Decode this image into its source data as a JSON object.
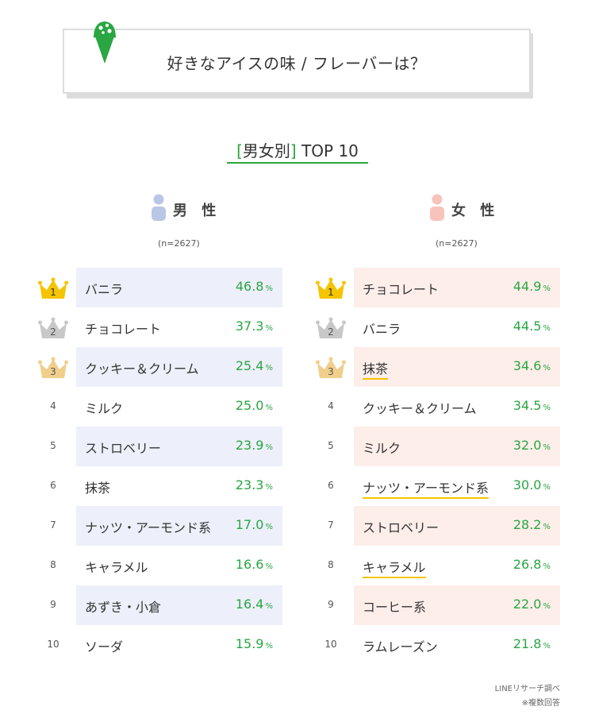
{
  "title": "好きなアイスの味 / フレーバーは？",
  "subtitle": {
    "bracket_open": "[",
    "group": "男女別",
    "bracket_close": "]",
    "top": "TOP 10"
  },
  "male": {
    "label": "男 性",
    "sample": "(n=2627)",
    "color": "#b9c6e6",
    "row_bg": "#edf0fa",
    "items": [
      {
        "rank": "1",
        "name": "バニラ",
        "value": "46.8",
        "unit": "%"
      },
      {
        "rank": "2",
        "name": "チョコレート",
        "value": "37.3",
        "unit": "%"
      },
      {
        "rank": "3",
        "name": "クッキー＆クリーム",
        "value": "25.4",
        "unit": "%"
      },
      {
        "rank": "4",
        "name": "ミルク",
        "value": "25.0",
        "unit": "%"
      },
      {
        "rank": "5",
        "name": "ストロベリー",
        "value": "23.9",
        "unit": "%"
      },
      {
        "rank": "6",
        "name": "抹茶",
        "value": "23.3",
        "unit": "%"
      },
      {
        "rank": "7",
        "name": "ナッツ・アーモンド系",
        "value": "17.0",
        "unit": "%"
      },
      {
        "rank": "8",
        "name": "キャラメル",
        "value": "16.6",
        "unit": "%"
      },
      {
        "rank": "9",
        "name": "あずき・小倉",
        "value": "16.4",
        "unit": "%"
      },
      {
        "rank": "10",
        "name": "ソーダ",
        "value": "15.9",
        "unit": "%"
      }
    ]
  },
  "female": {
    "label": "女 性",
    "sample": "(n=2627)",
    "color": "#f7c3bb",
    "row_bg": "#fdeeea",
    "items": [
      {
        "rank": "1",
        "name": "チョコレート",
        "value": "44.9",
        "unit": "%"
      },
      {
        "rank": "2",
        "name": "バニラ",
        "value": "44.5",
        "unit": "%"
      },
      {
        "rank": "3",
        "name": "抹茶",
        "value": "34.6",
        "unit": "%",
        "underline": true
      },
      {
        "rank": "4",
        "name": "クッキー＆クリーム",
        "value": "34.5",
        "unit": "%"
      },
      {
        "rank": "5",
        "name": "ミルク",
        "value": "32.0",
        "unit": "%"
      },
      {
        "rank": "6",
        "name": "ナッツ・アーモンド系",
        "value": "30.0",
        "unit": "%",
        "underline": true
      },
      {
        "rank": "7",
        "name": "ストロベリー",
        "value": "28.2",
        "unit": "%"
      },
      {
        "rank": "8",
        "name": "キャラメル",
        "value": "26.8",
        "unit": "%",
        "underline": true
      },
      {
        "rank": "9",
        "name": "コーヒー系",
        "value": "22.0",
        "unit": "%"
      },
      {
        "rank": "10",
        "name": "ラムレーズン",
        "value": "21.8",
        "unit": "%"
      }
    ]
  },
  "crown_colors": {
    "gold": "#f5c400",
    "silver": "#c8c8c8",
    "bronze": "#f0ce8c"
  },
  "accent": "#2aa642",
  "footer": {
    "source": "LINEリサーチ調べ",
    "note": "※複数回答"
  }
}
